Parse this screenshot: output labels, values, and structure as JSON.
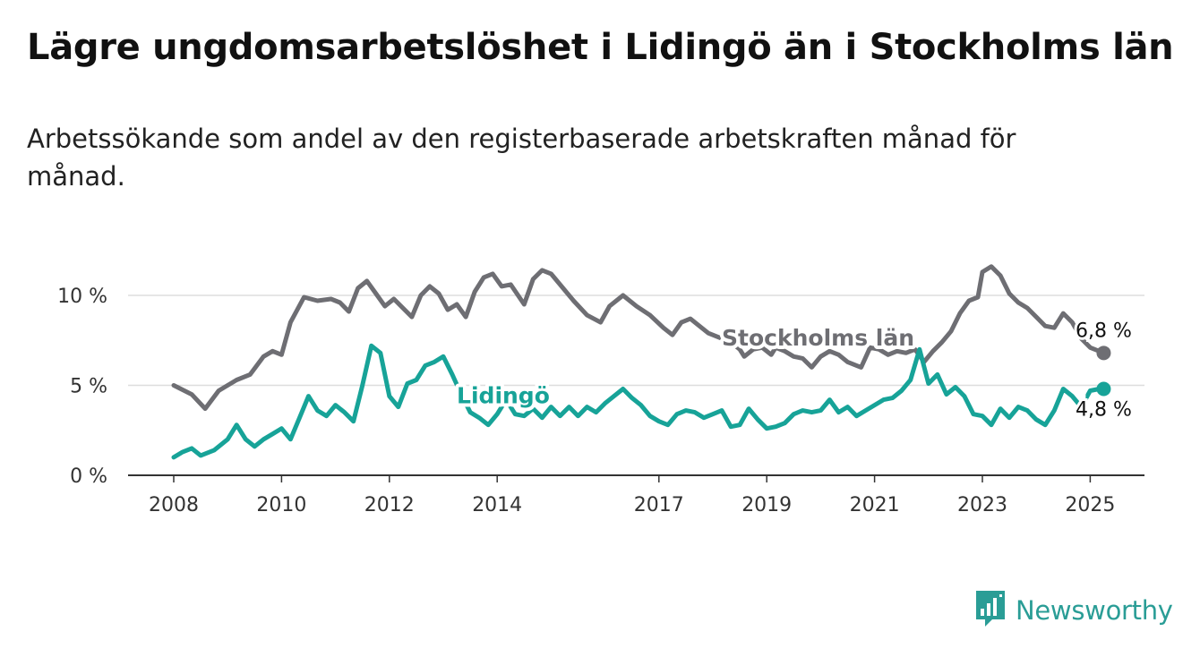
{
  "colors": {
    "stockholm": "#6e6e73",
    "lidingo": "#17a398",
    "grid": "#dddddd",
    "axis": "#333333"
  },
  "brand": {
    "name": "Newsworthy",
    "icon": "bar-chart-logo-icon",
    "color": "#2a9d96"
  },
  "chart_data": {
    "type": "line",
    "title": "Lägre ungdomsarbetslöshet i Lidingö än i Stockholms län",
    "subtitle": "Arbetssökande som andel av den registerbaserade arbetskraften månad för månad.",
    "xlabel": "",
    "ylabel": "",
    "x_start": "2008-01",
    "x_end": "2025-04",
    "x_ticks": [
      "2008",
      "2010",
      "2012",
      "2014",
      "2017",
      "2019",
      "2021",
      "2023",
      "2025"
    ],
    "y_ticks": [
      "0 %",
      "5 %",
      "10 %"
    ],
    "ylim": [
      0,
      12
    ],
    "grid": true,
    "series": [
      {
        "name": "Stockholms län",
        "label_x": "2018-03",
        "end_label": "6,8 %",
        "points": [
          [
            "2008-01",
            5.0
          ],
          [
            "2008-05",
            4.5
          ],
          [
            "2008-08",
            3.7
          ],
          [
            "2008-11",
            4.7
          ],
          [
            "2009-03",
            5.3
          ],
          [
            "2009-06",
            5.6
          ],
          [
            "2009-09",
            6.6
          ],
          [
            "2009-11",
            6.9
          ],
          [
            "2010-01",
            6.7
          ],
          [
            "2010-03",
            8.5
          ],
          [
            "2010-06",
            9.9
          ],
          [
            "2010-09",
            9.7
          ],
          [
            "2010-12",
            9.8
          ],
          [
            "2011-02",
            9.6
          ],
          [
            "2011-04",
            9.1
          ],
          [
            "2011-06",
            10.4
          ],
          [
            "2011-08",
            10.8
          ],
          [
            "2011-10",
            10.1
          ],
          [
            "2011-12",
            9.4
          ],
          [
            "2012-02",
            9.8
          ],
          [
            "2012-04",
            9.3
          ],
          [
            "2012-06",
            8.8
          ],
          [
            "2012-08",
            10.0
          ],
          [
            "2012-10",
            10.5
          ],
          [
            "2012-12",
            10.1
          ],
          [
            "2013-02",
            9.2
          ],
          [
            "2013-04",
            9.5
          ],
          [
            "2013-06",
            8.8
          ],
          [
            "2013-08",
            10.2
          ],
          [
            "2013-10",
            11.0
          ],
          [
            "2013-12",
            11.2
          ],
          [
            "2014-02",
            10.5
          ],
          [
            "2014-04",
            10.6
          ],
          [
            "2014-07",
            9.5
          ],
          [
            "2014-09",
            10.9
          ],
          [
            "2014-11",
            11.4
          ],
          [
            "2015-01",
            11.2
          ],
          [
            "2015-04",
            10.3
          ],
          [
            "2015-06",
            9.7
          ],
          [
            "2015-09",
            8.9
          ],
          [
            "2015-12",
            8.5
          ],
          [
            "2016-02",
            9.4
          ],
          [
            "2016-05",
            10.0
          ],
          [
            "2016-08",
            9.4
          ],
          [
            "2016-11",
            8.9
          ],
          [
            "2017-02",
            8.2
          ],
          [
            "2017-04",
            7.8
          ],
          [
            "2017-06",
            8.5
          ],
          [
            "2017-08",
            8.7
          ],
          [
            "2017-10",
            8.3
          ],
          [
            "2017-12",
            7.9
          ],
          [
            "2018-03",
            7.6
          ],
          [
            "2018-05",
            7.4
          ],
          [
            "2018-07",
            7.0
          ],
          [
            "2018-08",
            6.6
          ],
          [
            "2018-10",
            7.0
          ],
          [
            "2018-12",
            7.1
          ],
          [
            "2019-02",
            6.7
          ],
          [
            "2019-03",
            7.1
          ],
          [
            "2019-05",
            6.9
          ],
          [
            "2019-07",
            6.6
          ],
          [
            "2019-09",
            6.5
          ],
          [
            "2019-11",
            6.0
          ],
          [
            "2020-01",
            6.6
          ],
          [
            "2020-03",
            6.9
          ],
          [
            "2020-05",
            6.7
          ],
          [
            "2020-07",
            6.3
          ],
          [
            "2020-09",
            6.1
          ],
          [
            "2020-10",
            6.0
          ],
          [
            "2020-12",
            7.1
          ],
          [
            "2021-02",
            7.0
          ],
          [
            "2021-04",
            6.7
          ],
          [
            "2021-06",
            6.9
          ],
          [
            "2021-08",
            6.8
          ],
          [
            "2021-10",
            7.0
          ],
          [
            "2021-12",
            6.3
          ],
          [
            "2022-02",
            6.9
          ],
          [
            "2022-04",
            7.4
          ],
          [
            "2022-06",
            8.0
          ],
          [
            "2022-08",
            9.0
          ],
          [
            "2022-10",
            9.7
          ],
          [
            "2022-12",
            9.9
          ],
          [
            "2023-01",
            11.3
          ],
          [
            "2023-03",
            11.6
          ],
          [
            "2023-05",
            11.1
          ],
          [
            "2023-07",
            10.1
          ],
          [
            "2023-09",
            9.6
          ],
          [
            "2023-11",
            9.3
          ],
          [
            "2024-01",
            8.8
          ],
          [
            "2024-03",
            8.3
          ],
          [
            "2024-05",
            8.2
          ],
          [
            "2024-07",
            9.0
          ],
          [
            "2024-09",
            8.5
          ],
          [
            "2024-11",
            7.6
          ],
          [
            "2025-01",
            7.1
          ],
          [
            "2025-03",
            6.9
          ],
          [
            "2025-04",
            6.8
          ]
        ]
      },
      {
        "name": "Lidingö",
        "label_x": "2013-04",
        "end_label": "4,8 %",
        "points": [
          [
            "2008-01",
            1.0
          ],
          [
            "2008-03",
            1.3
          ],
          [
            "2008-05",
            1.5
          ],
          [
            "2008-07",
            1.1
          ],
          [
            "2008-10",
            1.4
          ],
          [
            "2009-01",
            2.0
          ],
          [
            "2009-03",
            2.8
          ],
          [
            "2009-05",
            2.0
          ],
          [
            "2009-07",
            1.6
          ],
          [
            "2009-09",
            2.0
          ],
          [
            "2009-11",
            2.3
          ],
          [
            "2010-01",
            2.6
          ],
          [
            "2010-03",
            2.0
          ],
          [
            "2010-05",
            3.2
          ],
          [
            "2010-07",
            4.4
          ],
          [
            "2010-09",
            3.6
          ],
          [
            "2010-11",
            3.3
          ],
          [
            "2011-01",
            3.9
          ],
          [
            "2011-03",
            3.5
          ],
          [
            "2011-05",
            3.0
          ],
          [
            "2011-07",
            5.0
          ],
          [
            "2011-09",
            7.2
          ],
          [
            "2011-11",
            6.8
          ],
          [
            "2012-01",
            4.4
          ],
          [
            "2012-03",
            3.8
          ],
          [
            "2012-05",
            5.1
          ],
          [
            "2012-07",
            5.3
          ],
          [
            "2012-09",
            6.1
          ],
          [
            "2012-11",
            6.3
          ],
          [
            "2013-01",
            6.6
          ],
          [
            "2013-03",
            5.6
          ],
          [
            "2013-05",
            4.5
          ],
          [
            "2013-07",
            3.5
          ],
          [
            "2013-09",
            3.2
          ],
          [
            "2013-11",
            2.8
          ],
          [
            "2014-01",
            3.4
          ],
          [
            "2014-03",
            4.2
          ],
          [
            "2014-05",
            3.4
          ],
          [
            "2014-07",
            3.3
          ],
          [
            "2014-09",
            3.7
          ],
          [
            "2014-11",
            3.2
          ],
          [
            "2015-01",
            3.8
          ],
          [
            "2015-03",
            3.3
          ],
          [
            "2015-05",
            3.8
          ],
          [
            "2015-07",
            3.3
          ],
          [
            "2015-09",
            3.8
          ],
          [
            "2015-11",
            3.5
          ],
          [
            "2016-01",
            4.0
          ],
          [
            "2016-03",
            4.4
          ],
          [
            "2016-05",
            4.8
          ],
          [
            "2016-07",
            4.3
          ],
          [
            "2016-09",
            3.9
          ],
          [
            "2016-11",
            3.3
          ],
          [
            "2017-01",
            3.0
          ],
          [
            "2017-03",
            2.8
          ],
          [
            "2017-05",
            3.4
          ],
          [
            "2017-07",
            3.6
          ],
          [
            "2017-09",
            3.5
          ],
          [
            "2017-11",
            3.2
          ],
          [
            "2018-01",
            3.4
          ],
          [
            "2018-03",
            3.6
          ],
          [
            "2018-05",
            2.7
          ],
          [
            "2018-07",
            2.8
          ],
          [
            "2018-09",
            3.7
          ],
          [
            "2018-11",
            3.1
          ],
          [
            "2019-01",
            2.6
          ],
          [
            "2019-03",
            2.7
          ],
          [
            "2019-05",
            2.9
          ],
          [
            "2019-07",
            3.4
          ],
          [
            "2019-09",
            3.6
          ],
          [
            "2019-11",
            3.5
          ],
          [
            "2020-01",
            3.6
          ],
          [
            "2020-03",
            4.2
          ],
          [
            "2020-05",
            3.5
          ],
          [
            "2020-07",
            3.8
          ],
          [
            "2020-09",
            3.3
          ],
          [
            "2020-11",
            3.6
          ],
          [
            "2021-01",
            3.9
          ],
          [
            "2021-03",
            4.2
          ],
          [
            "2021-05",
            4.3
          ],
          [
            "2021-07",
            4.7
          ],
          [
            "2021-09",
            5.3
          ],
          [
            "2021-11",
            7.0
          ],
          [
            "2022-01",
            5.1
          ],
          [
            "2022-03",
            5.6
          ],
          [
            "2022-05",
            4.5
          ],
          [
            "2022-07",
            4.9
          ],
          [
            "2022-09",
            4.4
          ],
          [
            "2022-11",
            3.4
          ],
          [
            "2023-01",
            3.3
          ],
          [
            "2023-03",
            2.8
          ],
          [
            "2023-05",
            3.7
          ],
          [
            "2023-07",
            3.2
          ],
          [
            "2023-09",
            3.8
          ],
          [
            "2023-11",
            3.6
          ],
          [
            "2024-01",
            3.1
          ],
          [
            "2024-03",
            2.8
          ],
          [
            "2024-05",
            3.6
          ],
          [
            "2024-07",
            4.8
          ],
          [
            "2024-09",
            4.4
          ],
          [
            "2024-11",
            3.8
          ],
          [
            "2025-01",
            4.7
          ],
          [
            "2025-03",
            4.8
          ],
          [
            "2025-04",
            4.8
          ]
        ]
      }
    ]
  }
}
